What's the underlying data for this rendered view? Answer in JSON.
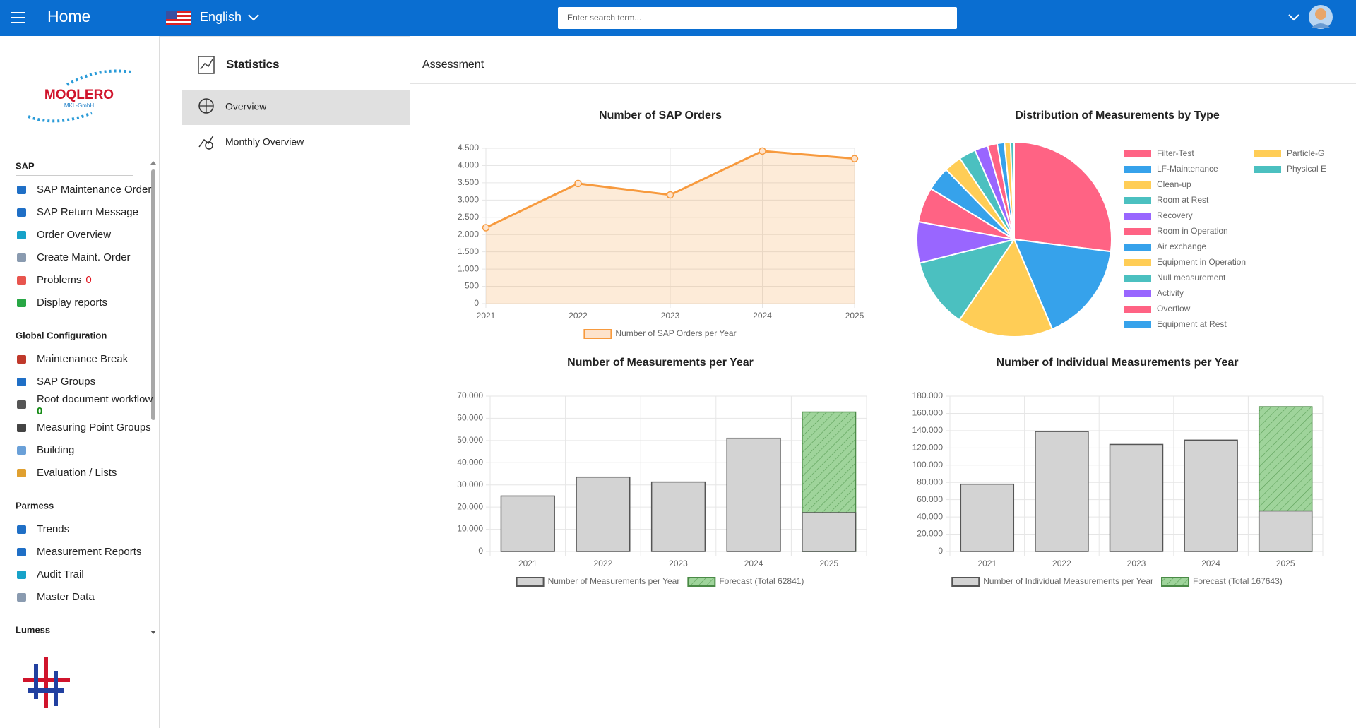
{
  "header": {
    "title": "Home",
    "language": "English",
    "search_placeholder": "Enter search term..."
  },
  "sidebar": {
    "logo": "MOQLERO",
    "logo_subtitle": "MKL-GmbH",
    "sections": [
      {
        "title": "SAP",
        "items": [
          {
            "label": "SAP Maintenance Order"
          },
          {
            "label": "SAP Return Message"
          },
          {
            "label": "Order Overview"
          },
          {
            "label": "Create Maint. Order"
          },
          {
            "label": "Problems",
            "badge": 0
          },
          {
            "label": "Display reports"
          }
        ]
      },
      {
        "title": "Global Configuration",
        "items": [
          {
            "label": "Maintenance Break"
          },
          {
            "label": "SAP Groups"
          },
          {
            "label": "Root document workflow",
            "badge": 0
          },
          {
            "label": "Measuring Point Groups"
          },
          {
            "label": "Building"
          },
          {
            "label": "Evaluation / Lists"
          }
        ]
      },
      {
        "title": "Parmess",
        "items": [
          {
            "label": "Trends"
          },
          {
            "label": "Measurement Reports"
          },
          {
            "label": "Audit Trail"
          },
          {
            "label": "Master Data"
          }
        ]
      },
      {
        "title": "Lumess",
        "items": []
      }
    ]
  },
  "nav": {
    "title": "Statistics",
    "items": [
      "Overview",
      "Monthly Overview"
    ]
  },
  "main": {
    "title": "Assessment"
  },
  "chart_data": [
    {
      "type": "line",
      "title": "Number of SAP Orders",
      "categories": [
        "2021",
        "2022",
        "2023",
        "2024",
        "2025"
      ],
      "series": [
        {
          "name": "Number of SAP Orders per Year",
          "color": "#f79a3e",
          "values": [
            2200,
            3480,
            3150,
            4420,
            4200
          ]
        }
      ],
      "fill": true,
      "ylim": [
        0,
        4500
      ],
      "yticks": [
        0,
        500,
        {
          "value": 1000,
          "label": "1.000"
        },
        {
          "value": 1500,
          "label": "1.500"
        },
        {
          "value": 2000,
          "label": "2.000"
        },
        {
          "value": 2500,
          "label": "2.500"
        },
        {
          "value": 3000,
          "label": "3.000"
        },
        {
          "value": 3500,
          "label": "3.500"
        },
        {
          "value": 4000,
          "label": "4.000"
        },
        {
          "value": 4500,
          "label": "4.500"
        }
      ],
      "grid": true
    },
    {
      "type": "pie",
      "title": "Distribution of Measurements by Type",
      "categories": [
        "Filter-Test",
        "LF-Maintenance",
        "Clean-up",
        "Room at Rest",
        "Recovery",
        "Room in Operation",
        "Air exchange",
        "Equipment in Operation",
        "Null measurement",
        "Activity",
        "Overflow",
        "Equipment at Rest",
        "Particle-G",
        "Physical E"
      ],
      "values": [
        27,
        16.6,
        15.9,
        11.6,
        6.8,
        5.8,
        4,
        2.9,
        2.8,
        2.2,
        1.6,
        1.2,
        1,
        0.6
      ],
      "colors": [
        "#ff6384",
        "#36a2eb",
        "#ffcd56",
        "#4bc0c0",
        "#9966ff",
        "#ff6384",
        "#36a2eb",
        "#ffcd56",
        "#4bc0c0",
        "#9966ff",
        "#ff6384",
        "#36a2eb",
        "#ffcd56",
        "#4bc0c0"
      ]
    },
    {
      "type": "bar",
      "title": "Number of Measurements per Year",
      "categories": [
        "2021",
        "2022",
        "2023",
        "2024",
        "2025"
      ],
      "series": [
        {
          "name": "Number of Measurements per Year",
          "color": "#d3d3d3",
          "values": [
            25000,
            33500,
            31300,
            51000,
            17500
          ]
        },
        {
          "name": "Forecast (Total 62841)",
          "color": "#9fd49b",
          "pattern": "hatch",
          "values": [
            null,
            null,
            null,
            null,
            62841
          ]
        }
      ],
      "ylim": [
        0,
        70000
      ],
      "yticks": [
        0,
        {
          "value": 10000,
          "label": "10.000"
        },
        {
          "value": 20000,
          "label": "20.000"
        },
        {
          "value": 30000,
          "label": "30.000"
        },
        {
          "value": 40000,
          "label": "40.000"
        },
        {
          "value": 50000,
          "label": "50.000"
        },
        {
          "value": 60000,
          "label": "60.000"
        },
        {
          "value": 70000,
          "label": "70.000"
        }
      ],
      "grid": true
    },
    {
      "type": "bar",
      "title": "Number of Individual Measurements per Year",
      "categories": [
        "2021",
        "2022",
        "2023",
        "2024",
        "2025"
      ],
      "series": [
        {
          "name": "Number of Individual Measurements per Year",
          "color": "#d3d3d3",
          "values": [
            78000,
            139000,
            124000,
            129000,
            47000
          ]
        },
        {
          "name": "Forecast (Total 167643)",
          "color": "#9fd49b",
          "pattern": "hatch",
          "values": [
            null,
            null,
            null,
            null,
            167643
          ]
        }
      ],
      "ylim": [
        0,
        180000
      ],
      "yticks": [
        0,
        {
          "value": 20000,
          "label": "20.000"
        },
        {
          "value": 40000,
          "label": "40.000"
        },
        {
          "value": 60000,
          "label": "60.000"
        },
        {
          "value": 80000,
          "label": "80.000"
        },
        {
          "value": 100000,
          "label": "100.000"
        },
        {
          "value": 120000,
          "label": "120.000"
        },
        {
          "value": 140000,
          "label": "140.000"
        },
        {
          "value": 160000,
          "label": "160.000"
        },
        {
          "value": 180000,
          "label": "180.000"
        }
      ],
      "grid": true
    }
  ]
}
